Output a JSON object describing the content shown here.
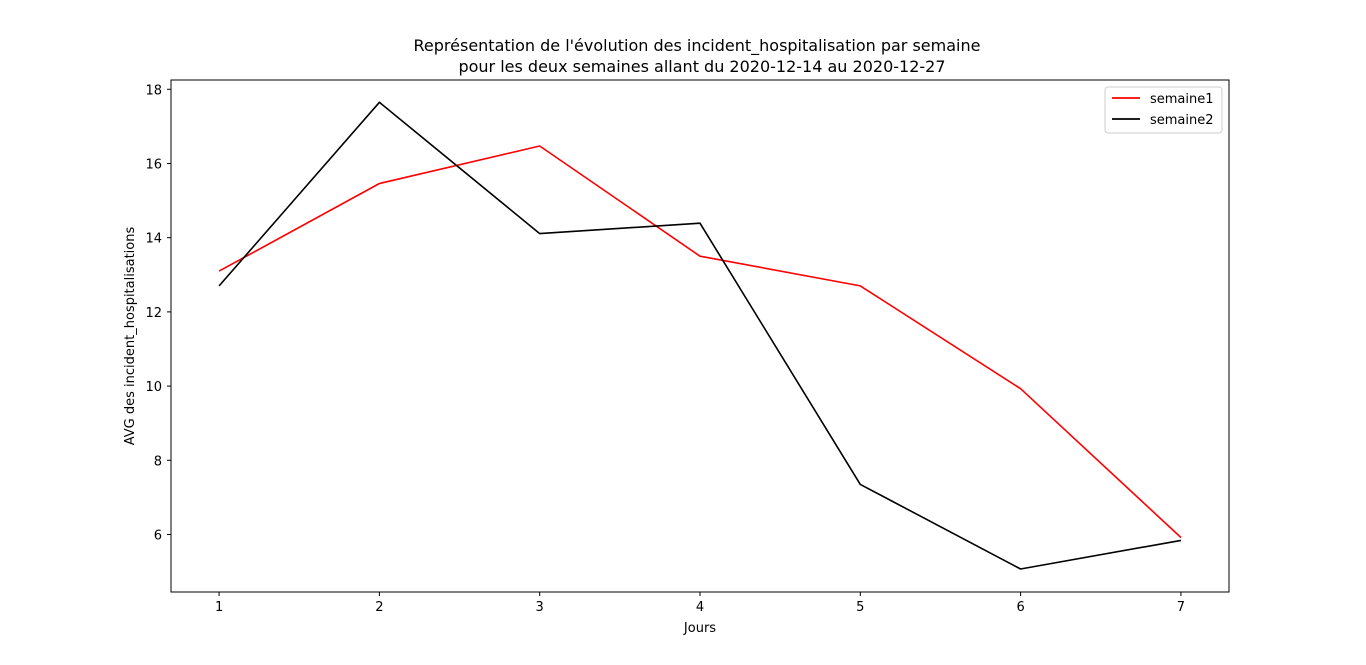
{
  "chart_data": {
    "type": "line",
    "title": "Représentation de l'évolution des incident_hospitalisation par semaine",
    "subtitle": "pour les deux semaines allant du 2020-12-14 au 2020-12-27",
    "xlabel": "Jours",
    "ylabel": "AVG des incident_hospitalisations",
    "x": [
      1,
      2,
      3,
      4,
      5,
      6,
      7
    ],
    "xlim": [
      0.7,
      7.3
    ],
    "ylim": [
      4.45,
      18.25
    ],
    "xticks": [
      1,
      2,
      3,
      4,
      5,
      6,
      7
    ],
    "yticks": [
      6,
      8,
      10,
      12,
      14,
      16,
      18
    ],
    "grid": false,
    "legend_position": "top-right",
    "series": [
      {
        "name": "semaine1",
        "color": "#ff0000",
        "values": [
          13.1,
          15.46,
          16.47,
          13.5,
          12.7,
          9.93,
          5.92
        ]
      },
      {
        "name": "semaine2",
        "color": "#000000",
        "values": [
          12.7,
          17.65,
          14.11,
          14.39,
          7.35,
          5.07,
          5.84
        ]
      }
    ]
  }
}
